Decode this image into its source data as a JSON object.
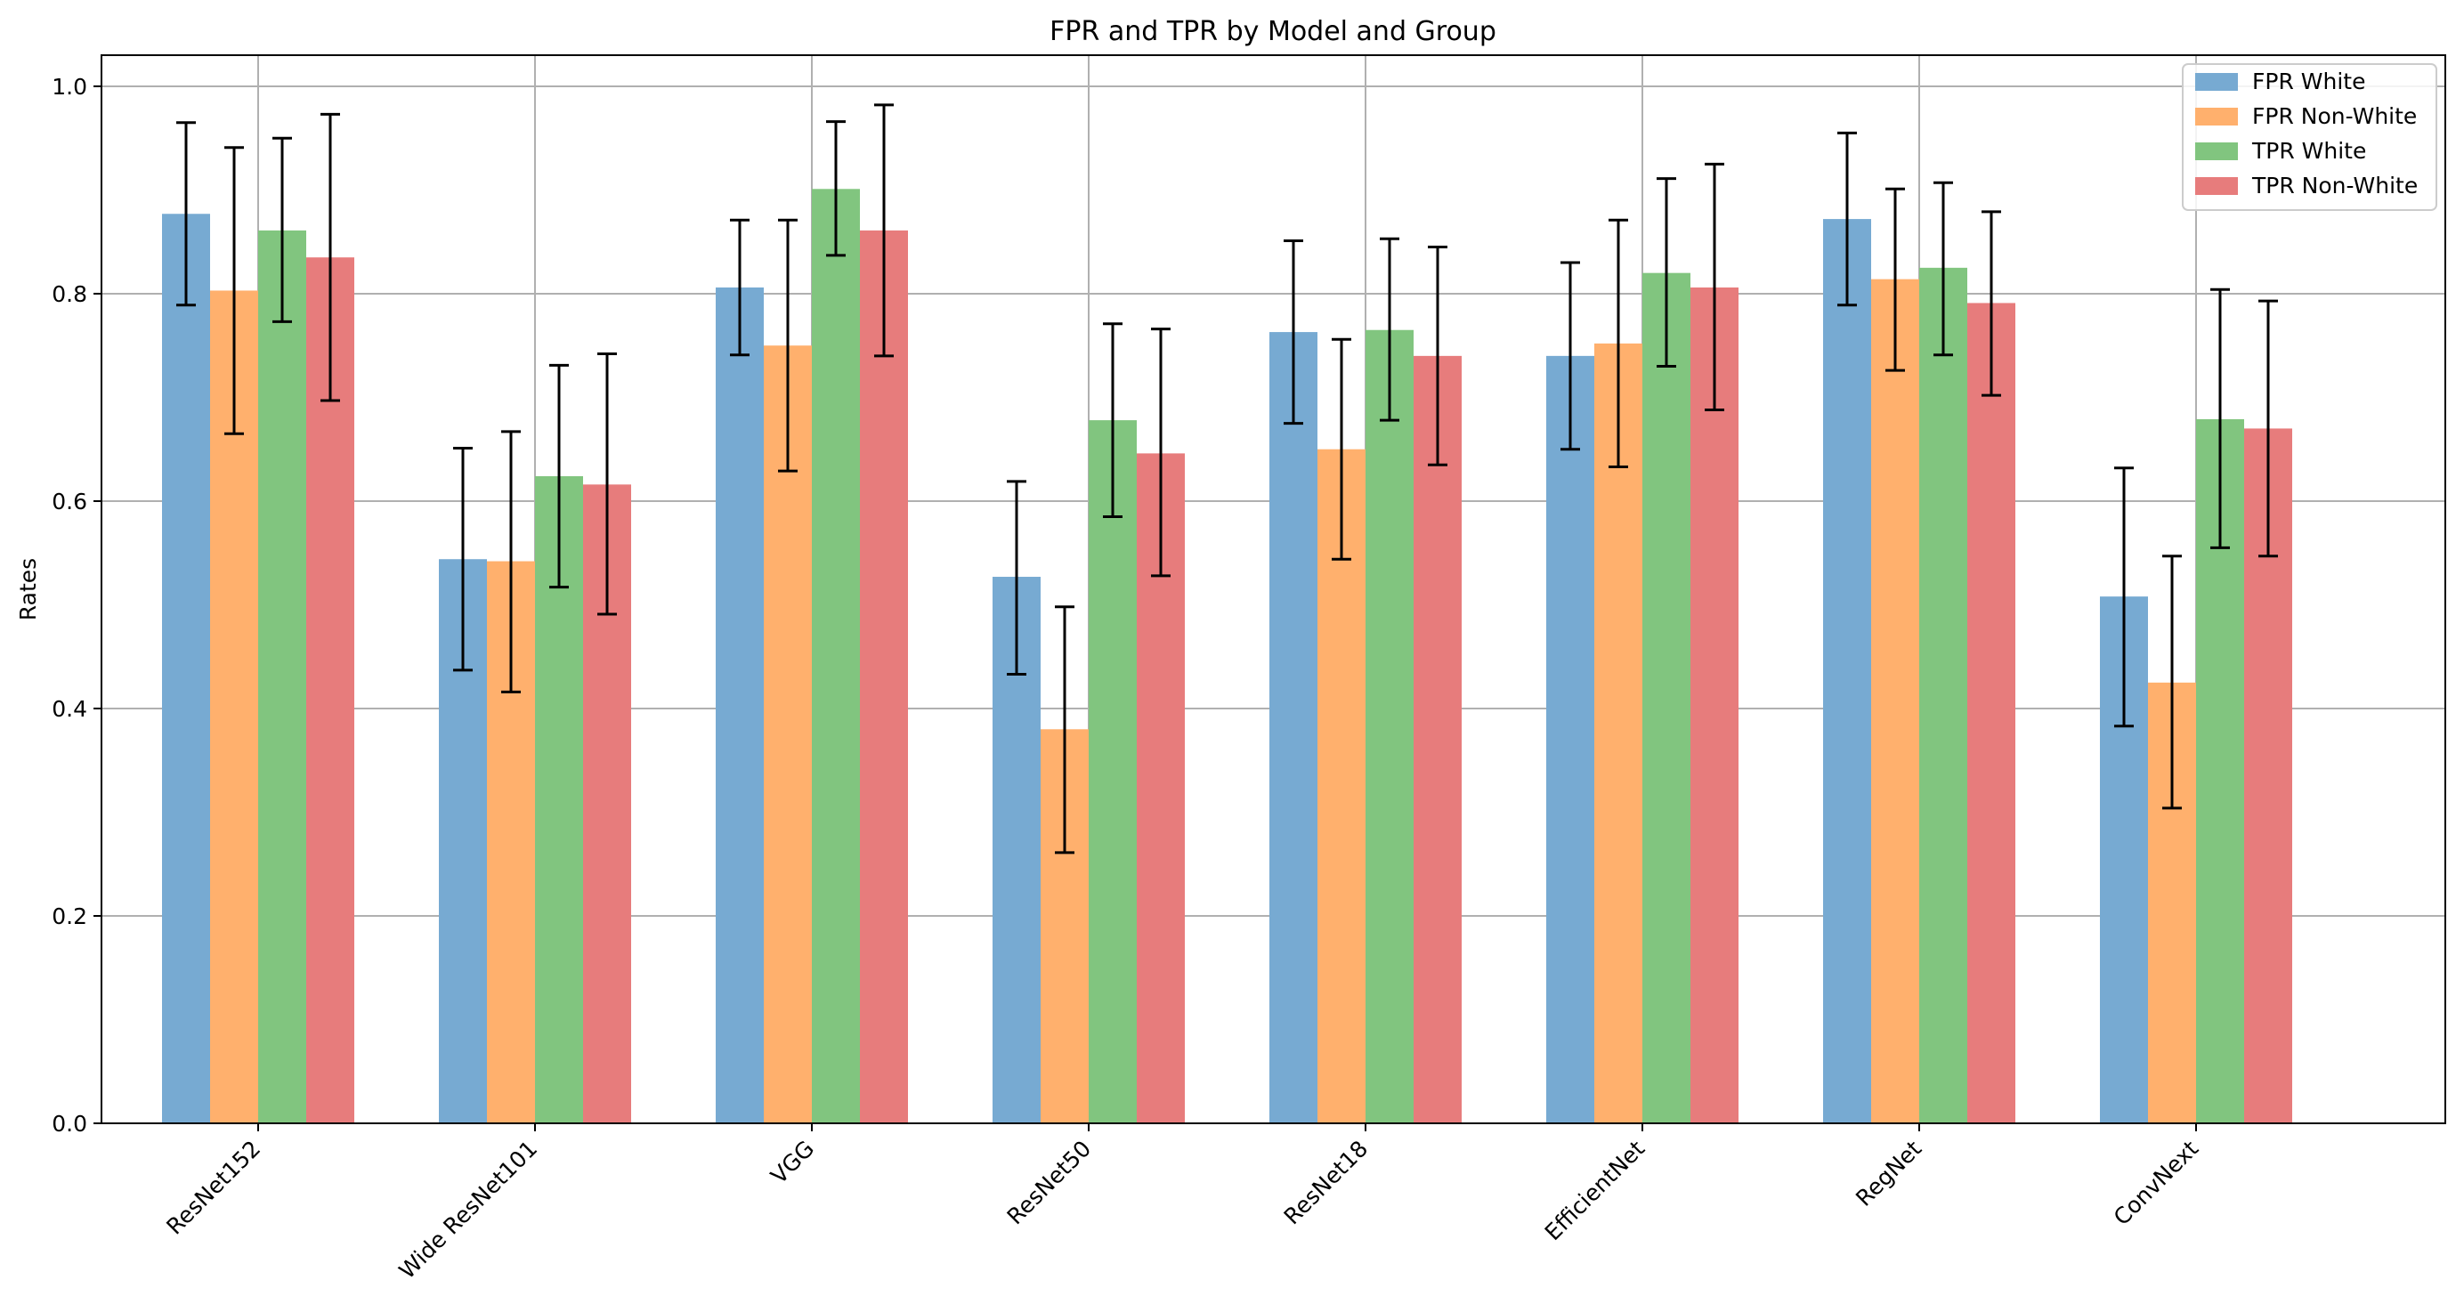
{
  "chart_data": {
    "type": "bar",
    "title": "FPR and TPR by Model and Group",
    "xlabel": "",
    "ylabel": "Rates",
    "ylim": [
      0,
      1.03
    ],
    "yticks": [
      0.0,
      0.2,
      0.4,
      0.6,
      0.8,
      1.0
    ],
    "ytick_labels": [
      "0.0",
      "0.2",
      "0.4",
      "0.6",
      "0.8",
      "1.0"
    ],
    "grid": true,
    "legend_position": "top-right",
    "error_bars": true,
    "categories": [
      "ResNet152",
      "Wide ResNet101",
      "VGG",
      "ResNet50",
      "ResNet18",
      "EfficientNet",
      "RegNet",
      "ConvNext"
    ],
    "series": [
      {
        "name": "FPR White",
        "color": "#77aad2",
        "values": [
          0.877,
          0.544,
          0.806,
          0.527,
          0.763,
          0.74,
          0.872,
          0.508
        ],
        "err_low": [
          0.789,
          0.437,
          0.741,
          0.433,
          0.675,
          0.65,
          0.789,
          0.383
        ],
        "err_high": [
          0.965,
          0.651,
          0.871,
          0.619,
          0.851,
          0.83,
          0.955,
          0.632
        ]
      },
      {
        "name": "FPR Non-White",
        "color": "#ffb06d",
        "values": [
          0.803,
          0.542,
          0.75,
          0.38,
          0.65,
          0.752,
          0.814,
          0.425
        ],
        "err_low": [
          0.665,
          0.416,
          0.629,
          0.261,
          0.544,
          0.633,
          0.726,
          0.304
        ],
        "err_high": [
          0.941,
          0.667,
          0.871,
          0.498,
          0.756,
          0.871,
          0.901,
          0.547
        ]
      },
      {
        "name": "TPR White",
        "color": "#81c57f",
        "values": [
          0.861,
          0.624,
          0.901,
          0.678,
          0.765,
          0.82,
          0.825,
          0.679
        ],
        "err_low": [
          0.773,
          0.517,
          0.837,
          0.585,
          0.678,
          0.73,
          0.741,
          0.555
        ],
        "err_high": [
          0.95,
          0.731,
          0.966,
          0.771,
          0.853,
          0.911,
          0.907,
          0.804
        ]
      },
      {
        "name": "TPR Non-White",
        "color": "#e77c7c",
        "values": [
          0.835,
          0.616,
          0.861,
          0.646,
          0.74,
          0.806,
          0.791,
          0.67
        ],
        "err_low": [
          0.697,
          0.491,
          0.74,
          0.528,
          0.635,
          0.688,
          0.702,
          0.547
        ],
        "err_high": [
          0.973,
          0.742,
          0.982,
          0.766,
          0.845,
          0.925,
          0.879,
          0.793
        ]
      }
    ]
  }
}
